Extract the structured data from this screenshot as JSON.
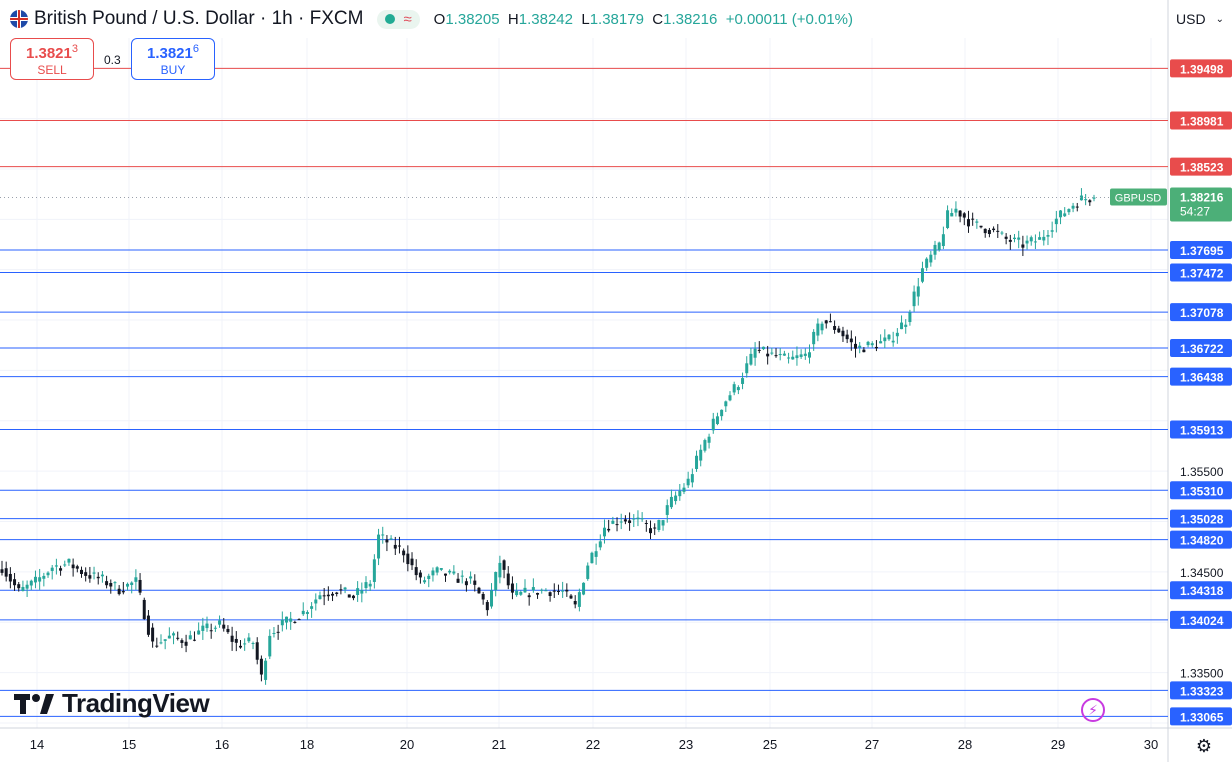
{
  "header": {
    "title": "British Pound / U.S. Dollar · 1h · FXCM",
    "ohlc": [
      {
        "k": "O",
        "v": "1.38205"
      },
      {
        "k": "H",
        "v": "1.38242"
      },
      {
        "k": "L",
        "v": "1.38179"
      },
      {
        "k": "C",
        "v": "1.38216"
      },
      {
        "k": "",
        "v": "+0.00011 (+0.01%)"
      }
    ]
  },
  "trade": {
    "sell_price_main": "1.3821",
    "sell_price_sup": "3",
    "sell_label": "SELL",
    "spread": "0.3",
    "buy_price_main": "1.3821",
    "buy_price_sup": "6",
    "buy_label": "BUY"
  },
  "currency": "USD",
  "brand": "TradingView",
  "icons": [
    "flag-icon",
    "dot-icon",
    "waves-icon",
    "chevron-down-icon",
    "bolt-icon",
    "gear-icon",
    "tradingview-logo-icon"
  ],
  "colors": {
    "up": "#26a69a",
    "down": "#131722",
    "resistance": "#e84c4c",
    "support": "#2962ff",
    "current_price": "#4caf78"
  },
  "chart_data": {
    "type": "candlestick",
    "symbol": "GBPUSD",
    "interval": "1h",
    "x_labels": [
      "14",
      "15",
      "16",
      "18",
      "20",
      "21",
      "22",
      "23",
      "25",
      "27",
      "28",
      "29",
      "30"
    ],
    "y_tick_labels": [
      "1.35500",
      "1.34500",
      "1.33500"
    ],
    "y_range": [
      1.3295,
      1.398
    ],
    "grid": true,
    "current_price": {
      "label": "GBPUSD",
      "value": "1.38216",
      "countdown": "54:27"
    },
    "resistance_levels": [
      "1.39498",
      "1.38981",
      "1.38523"
    ],
    "support_levels": [
      "1.37695",
      "1.37472",
      "1.37078",
      "1.36722",
      "1.36438",
      "1.35913",
      "1.35310",
      "1.35028",
      "1.34820",
      "1.34318",
      "1.34024",
      "1.33323",
      "1.33065"
    ],
    "anchors": [
      [
        0,
        1.3455
      ],
      [
        4,
        1.343
      ],
      [
        8,
        1.344
      ],
      [
        12,
        1.3455
      ],
      [
        16,
        1.3458
      ],
      [
        20,
        1.3448
      ],
      [
        24,
        1.3442
      ],
      [
        28,
        1.3433
      ],
      [
        32,
        1.344
      ],
      [
        36,
        1.3378
      ],
      [
        40,
        1.3385
      ],
      [
        44,
        1.3382
      ],
      [
        48,
        1.3392
      ],
      [
        52,
        1.3397
      ],
      [
        56,
        1.3378
      ],
      [
        60,
        1.338
      ],
      [
        62,
        1.3345
      ],
      [
        64,
        1.339
      ],
      [
        68,
        1.34
      ],
      [
        72,
        1.341
      ],
      [
        76,
        1.3428
      ],
      [
        80,
        1.3432
      ],
      [
        84,
        1.3425
      ],
      [
        88,
        1.344
      ],
      [
        90,
        1.3485
      ],
      [
        92,
        1.348
      ],
      [
        96,
        1.347
      ],
      [
        100,
        1.344
      ],
      [
        104,
        1.345
      ],
      [
        108,
        1.3445
      ],
      [
        112,
        1.344
      ],
      [
        116,
        1.3415
      ],
      [
        119,
        1.346
      ],
      [
        122,
        1.3425
      ],
      [
        126,
        1.343
      ],
      [
        130,
        1.3432
      ],
      [
        134,
        1.343
      ],
      [
        137,
        1.3415
      ],
      [
        140,
        1.3458
      ],
      [
        144,
        1.3495
      ],
      [
        148,
        1.3503
      ],
      [
        152,
        1.35
      ],
      [
        156,
        1.349
      ],
      [
        160,
        1.352
      ],
      [
        164,
        1.354
      ],
      [
        168,
        1.358
      ],
      [
        172,
        1.3615
      ],
      [
        176,
        1.3638
      ],
      [
        180,
        1.367
      ],
      [
        184,
        1.3665
      ],
      [
        188,
        1.366
      ],
      [
        192,
        1.3665
      ],
      [
        196,
        1.37
      ],
      [
        200,
        1.369
      ],
      [
        204,
        1.3672
      ],
      [
        208,
        1.3675
      ],
      [
        212,
        1.368
      ],
      [
        216,
        1.37
      ],
      [
        220,
        1.375
      ],
      [
        224,
        1.3775
      ],
      [
        226,
        1.3803
      ],
      [
        228,
        1.381
      ],
      [
        232,
        1.3795
      ],
      [
        236,
        1.379
      ],
      [
        240,
        1.378
      ],
      [
        244,
        1.3775
      ],
      [
        248,
        1.378
      ],
      [
        252,
        1.38
      ],
      [
        256,
        1.3815
      ],
      [
        258,
        1.382
      ],
      [
        261,
        1.3822
      ]
    ],
    "last_candle": {
      "o": 1.38205,
      "h": 1.38242,
      "l": 1.38179,
      "c": 1.38216
    }
  }
}
